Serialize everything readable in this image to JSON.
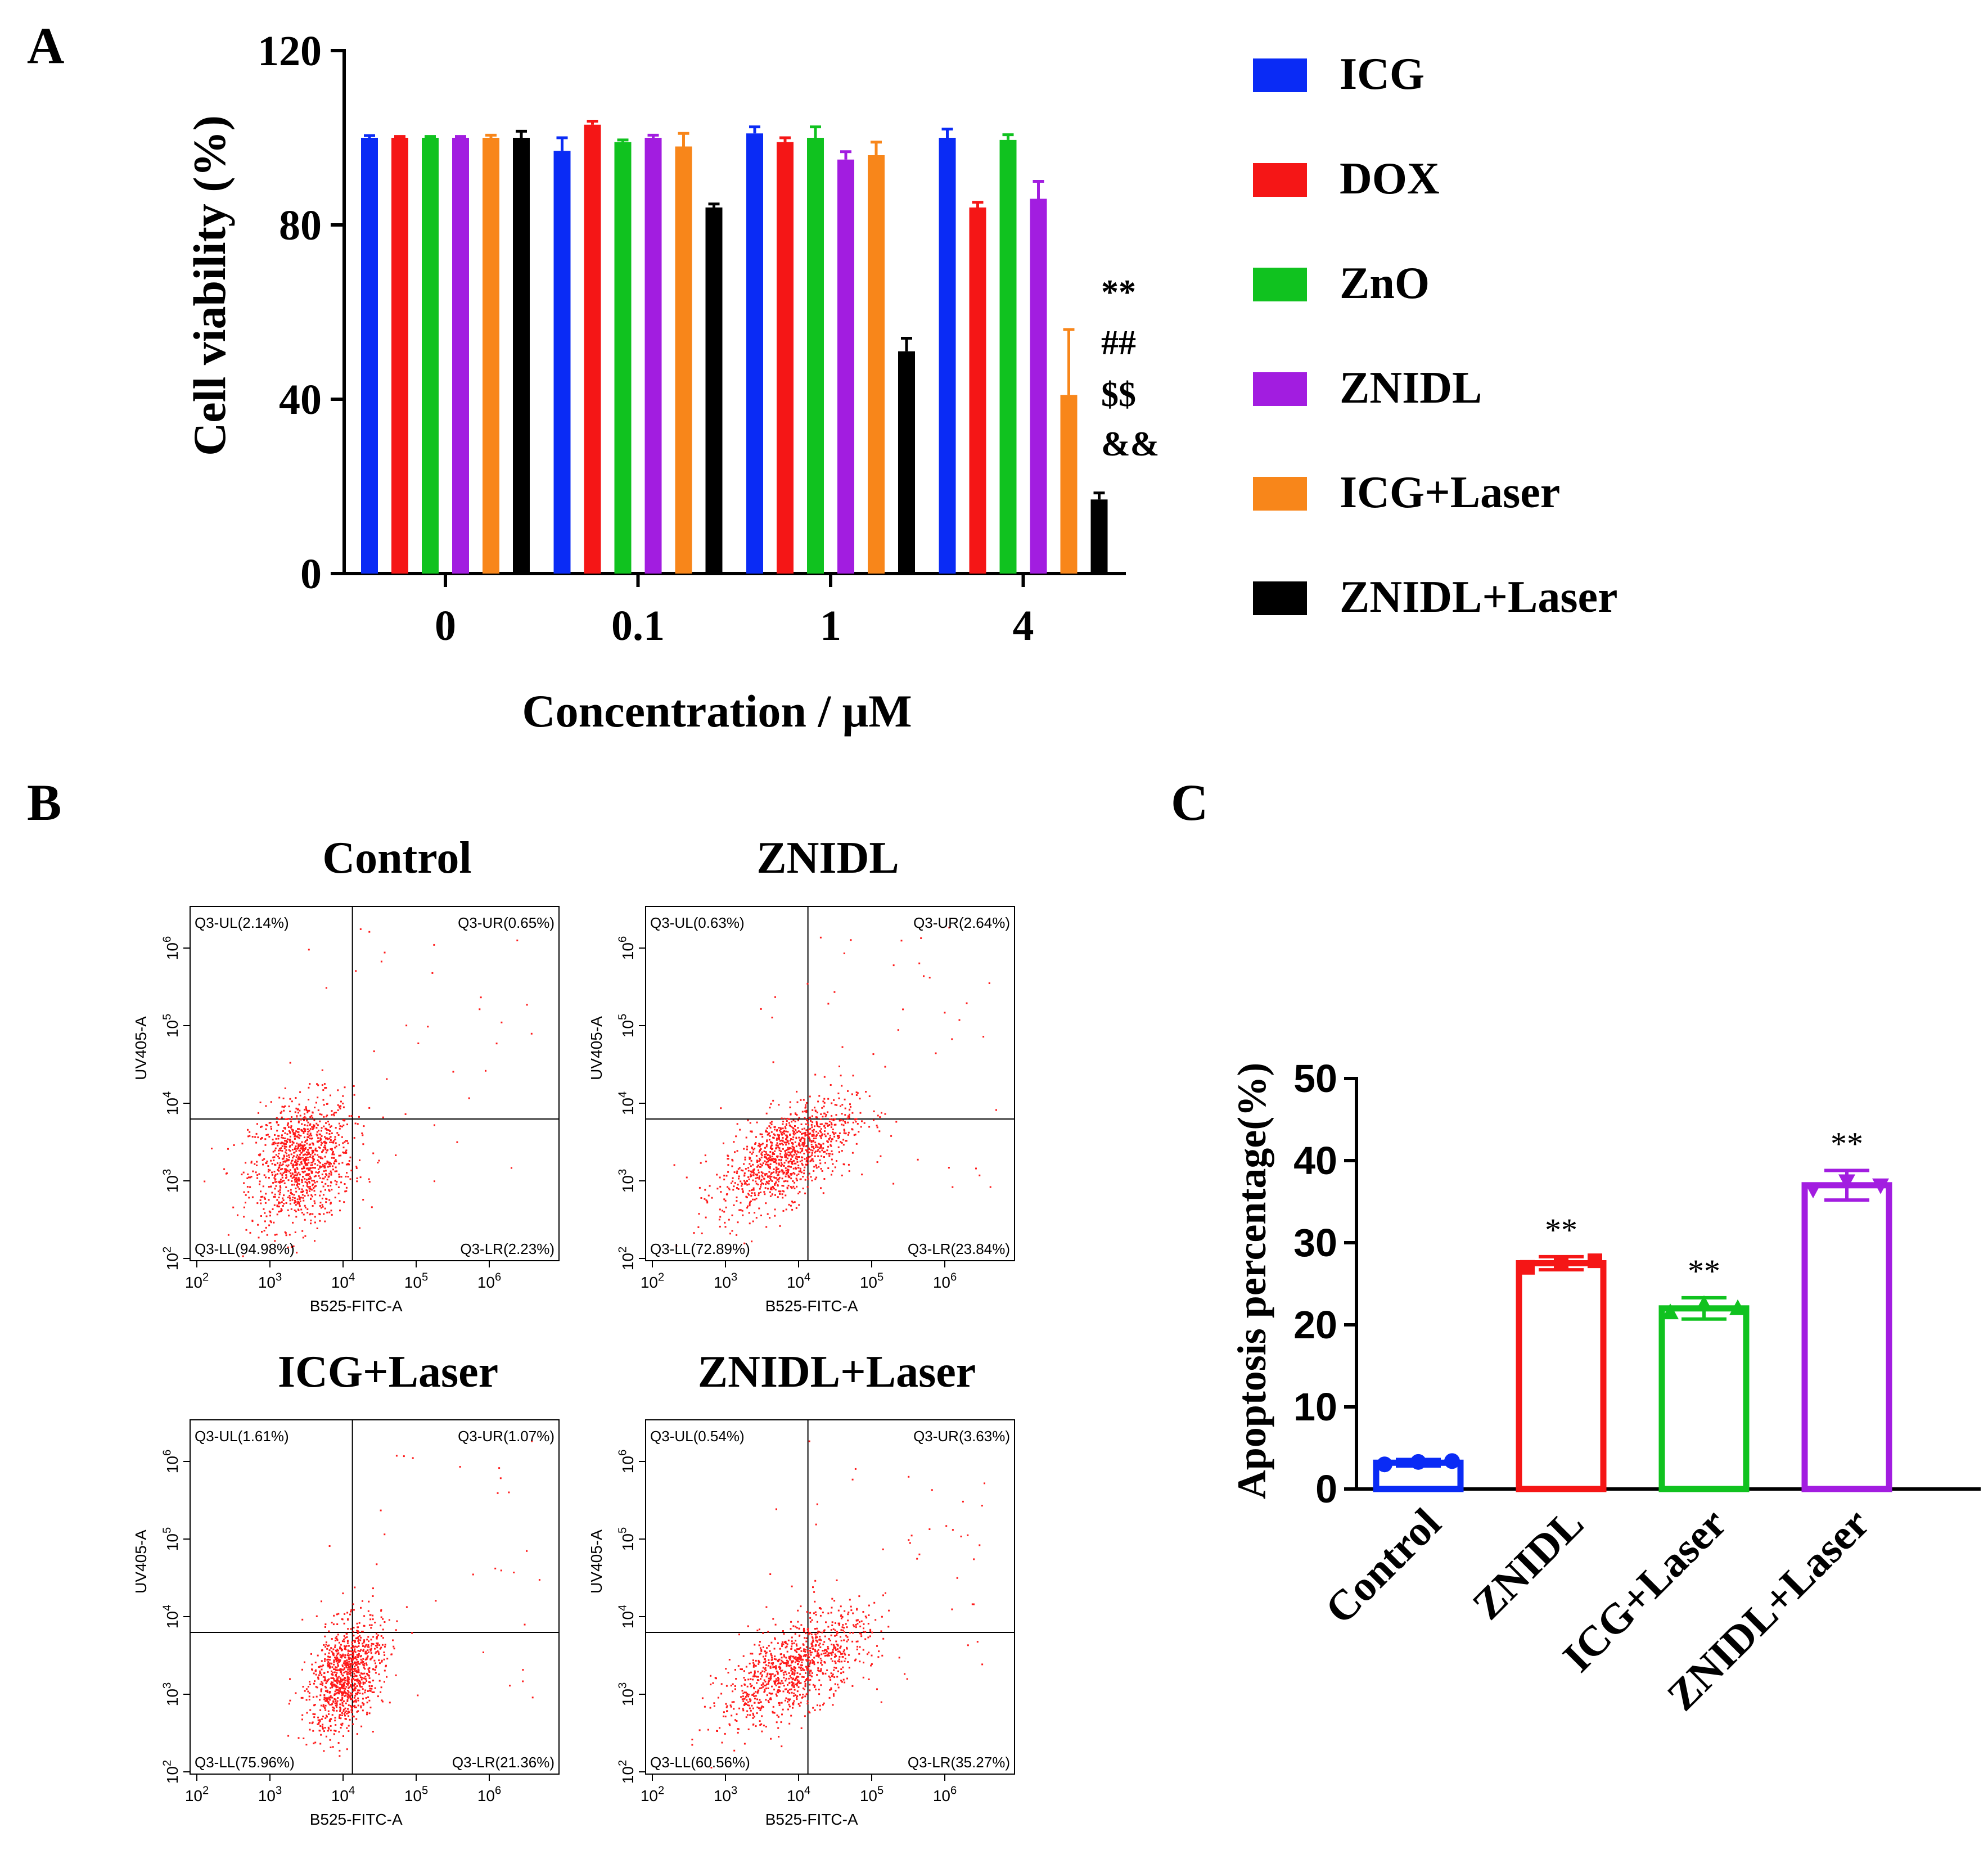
{
  "panel_labels": {
    "a": "A",
    "b": "B",
    "c": "C"
  },
  "colors": {
    "ICG": "#0a2bf5",
    "DOX": "#f51616",
    "ZnO": "#10c21f",
    "ZNIDL": "#a21de0",
    "ICG+Laser": "#f8861a",
    "ZNIDL+Laser": "#000000",
    "dots": "#ff1a1a",
    "axis": "#000000"
  },
  "chart_data": [
    {
      "id": "panel-a",
      "type": "bar",
      "ylabel": "Cell viability (%)",
      "xlabel": "Concentration / μM",
      "ylim": [
        0,
        120
      ],
      "yticks": [
        "0",
        "40",
        "80",
        "120"
      ],
      "categories": [
        "0",
        "0.1",
        "1",
        "4"
      ],
      "series": [
        {
          "name": "ICG",
          "values": [
            100,
            97,
            101,
            100
          ],
          "errors": [
            0.5,
            3,
            1.5,
            2
          ]
        },
        {
          "name": "DOX",
          "values": [
            100,
            103,
            99,
            84
          ],
          "errors": [
            0.3,
            0.8,
            1,
            1.2
          ]
        },
        {
          "name": "ZnO",
          "values": [
            100,
            99,
            100,
            99.5
          ],
          "errors": [
            0.3,
            0.5,
            2.5,
            1.2
          ]
        },
        {
          "name": "ZNIDL",
          "values": [
            100,
            100,
            95,
            86
          ],
          "errors": [
            0.3,
            0.6,
            1.8,
            4
          ]
        },
        {
          "name": "ICG+Laser",
          "values": [
            100,
            98,
            96,
            41
          ],
          "errors": [
            0.6,
            3,
            3,
            15
          ]
        },
        {
          "name": "ZNIDL+Laser",
          "values": [
            100,
            84,
            51,
            17
          ],
          "errors": [
            1.5,
            0.8,
            3,
            1.5
          ]
        }
      ],
      "annotations": [
        "**",
        "##",
        "$$",
        "&&"
      ],
      "legend_position": "right"
    },
    {
      "id": "panel-c",
      "type": "bar",
      "ylabel": "Apoptosis percentage(%)",
      "ylim": [
        0,
        50
      ],
      "yticks": [
        "0",
        "10",
        "20",
        "30",
        "40",
        "50"
      ],
      "categories": [
        "Control",
        "ZNIDL",
        "ICG+Laser",
        "ZNIDL+Laser"
      ],
      "values": [
        3.2,
        27.5,
        22.0,
        37.0
      ],
      "errors": [
        0.4,
        0.8,
        1.3,
        1.8
      ],
      "points": [
        [
          3.0,
          3.3,
          3.4
        ],
        [
          27.0,
          27.5,
          27.8
        ],
        [
          21.5,
          22.5,
          22.0
        ],
        [
          36.5,
          37.5,
          37.0
        ]
      ],
      "series_colors": [
        "#0a2bf5",
        "#f51616",
        "#10c21f",
        "#a21de0"
      ],
      "significance": [
        "",
        "**",
        "**",
        "**"
      ]
    }
  ],
  "flow_panels": [
    {
      "title": "Control",
      "ul": "Q3-UL(2.14%)",
      "ur": "Q3-UR(0.65%)",
      "ll": "Q3-LL(94.98%)",
      "lr": "Q3-LR(2.23%)"
    },
    {
      "title": "ZNIDL",
      "ul": "Q3-UL(0.63%)",
      "ur": "Q3-UR(2.64%)",
      "ll": "Q3-LL(72.89%)",
      "lr": "Q3-LR(23.84%)"
    },
    {
      "title": "ICG+Laser",
      "ul": "Q3-UL(1.61%)",
      "ur": "Q3-UR(1.07%)",
      "ll": "Q3-LL(75.96%)",
      "lr": "Q3-LR(21.36%)"
    },
    {
      "title": "ZNIDL+Laser",
      "ul": "Q3-UL(0.54%)",
      "ur": "Q3-UR(3.63%)",
      "ll": "Q3-LL(60.56%)",
      "lr": "Q3-LR(35.27%)"
    }
  ],
  "flow_axes": {
    "xlabel": "B525-FITC-A",
    "ylabel": "UV405-A",
    "xticks": [
      "10^2",
      "10^3",
      "10^4",
      "10^5",
      "10^6"
    ],
    "yticks": [
      "10^2",
      "10^3",
      "10^4",
      "10^5",
      "10^6"
    ]
  }
}
